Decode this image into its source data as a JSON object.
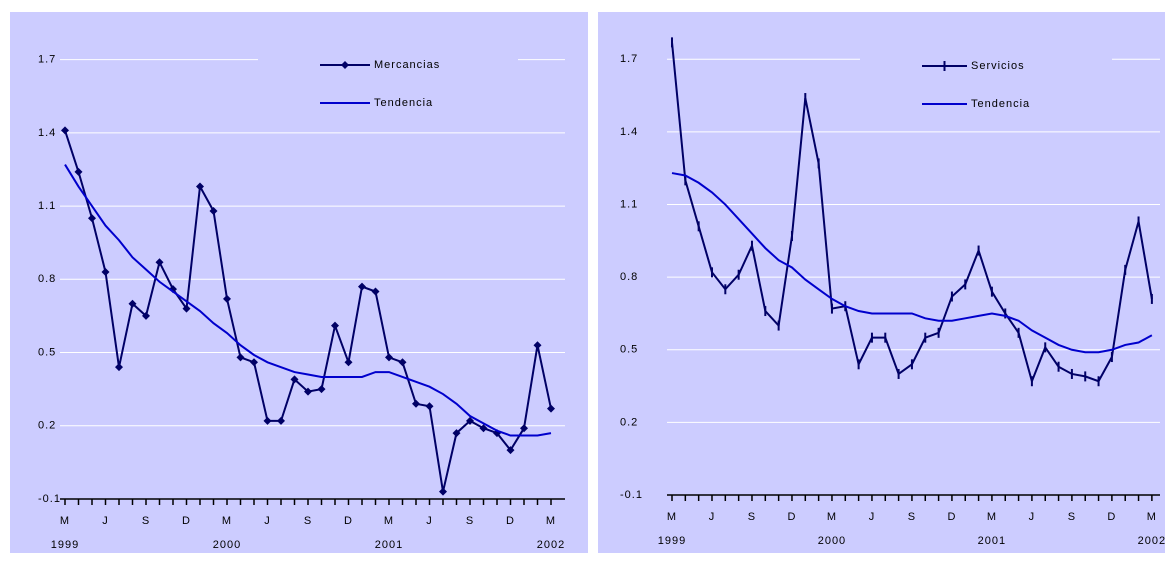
{
  "chart_data": [
    {
      "type": "line",
      "legend": "upper right",
      "grid": true,
      "categories": [
        "M",
        null,
        null,
        "J",
        null,
        null,
        "S",
        null,
        null,
        "D",
        null,
        null,
        "M",
        null,
        null,
        "J",
        null,
        null,
        "S",
        null,
        null,
        "D",
        null,
        null,
        "M",
        null,
        null,
        "J",
        null,
        null,
        "S",
        null,
        null,
        "D",
        null,
        null,
        "M"
      ],
      "year_labels": [
        "1999",
        "2000",
        "2001",
        "2002"
      ],
      "ylim": [
        -0.1,
        1.85
      ],
      "yticks": [
        -0.1,
        0.2,
        0.5,
        0.8,
        1.1,
        1.4,
        1.7
      ],
      "series": [
        {
          "name": "Mercancias",
          "color": "#000066",
          "marker": "diamond",
          "values": [
            1.41,
            1.24,
            1.05,
            0.83,
            0.44,
            0.7,
            0.65,
            0.87,
            0.76,
            0.68,
            1.18,
            1.08,
            0.72,
            0.48,
            0.46,
            0.22,
            0.22,
            0.39,
            0.34,
            0.35,
            0.61,
            0.46,
            0.77,
            0.75,
            0.48,
            0.46,
            0.29,
            0.28,
            -0.07,
            0.17,
            0.22,
            0.19,
            0.17,
            0.1,
            0.19,
            0.53,
            0.27
          ]
        },
        {
          "name": "Tendencia",
          "color": "#0000cc",
          "values": [
            1.27,
            1.18,
            1.1,
            1.02,
            0.96,
            0.89,
            0.84,
            0.79,
            0.75,
            0.71,
            0.67,
            0.62,
            0.58,
            0.53,
            0.49,
            0.46,
            0.44,
            0.42,
            0.41,
            0.4,
            0.4,
            0.4,
            0.4,
            0.42,
            0.42,
            0.4,
            0.38,
            0.36,
            0.33,
            0.29,
            0.24,
            0.21,
            0.18,
            0.16,
            0.16,
            0.16,
            0.17
          ]
        }
      ]
    },
    {
      "type": "line",
      "legend": "upper right",
      "grid": true,
      "categories": [
        "M",
        null,
        null,
        "J",
        null,
        null,
        "S",
        null,
        null,
        "D",
        null,
        null,
        "M",
        null,
        null,
        "J",
        null,
        null,
        "S",
        null,
        null,
        "D",
        null,
        null,
        "M",
        null,
        null,
        "J",
        null,
        null,
        "S",
        null,
        null,
        "D",
        null,
        null,
        "M"
      ],
      "year_labels": [
        "1999",
        "2000",
        "2001",
        "2002"
      ],
      "ylim": [
        -0.1,
        1.85
      ],
      "yticks": [
        -0.1,
        0.2,
        0.5,
        0.8,
        1.1,
        1.4,
        1.7
      ],
      "series": [
        {
          "name": "Servicios",
          "color": "#000066",
          "marker": "tick",
          "values": [
            1.77,
            1.2,
            1.01,
            0.82,
            0.75,
            0.81,
            0.93,
            0.66,
            0.6,
            0.97,
            1.54,
            1.27,
            0.67,
            0.68,
            0.44,
            0.55,
            0.55,
            0.4,
            0.44,
            0.55,
            0.57,
            0.72,
            0.77,
            0.91,
            0.74,
            0.65,
            0.57,
            0.37,
            0.51,
            0.43,
            0.4,
            0.39,
            0.37,
            0.47,
            0.83,
            1.03,
            0.71
          ]
        },
        {
          "name": "Tendencia",
          "color": "#0000cc",
          "values": [
            1.23,
            1.22,
            1.19,
            1.15,
            1.1,
            1.04,
            0.98,
            0.92,
            0.87,
            0.84,
            0.79,
            0.75,
            0.71,
            0.68,
            0.66,
            0.65,
            0.65,
            0.65,
            0.65,
            0.63,
            0.62,
            0.62,
            0.63,
            0.64,
            0.65,
            0.64,
            0.62,
            0.58,
            0.55,
            0.52,
            0.5,
            0.49,
            0.49,
            0.5,
            0.52,
            0.53,
            0.56
          ]
        }
      ]
    }
  ]
}
